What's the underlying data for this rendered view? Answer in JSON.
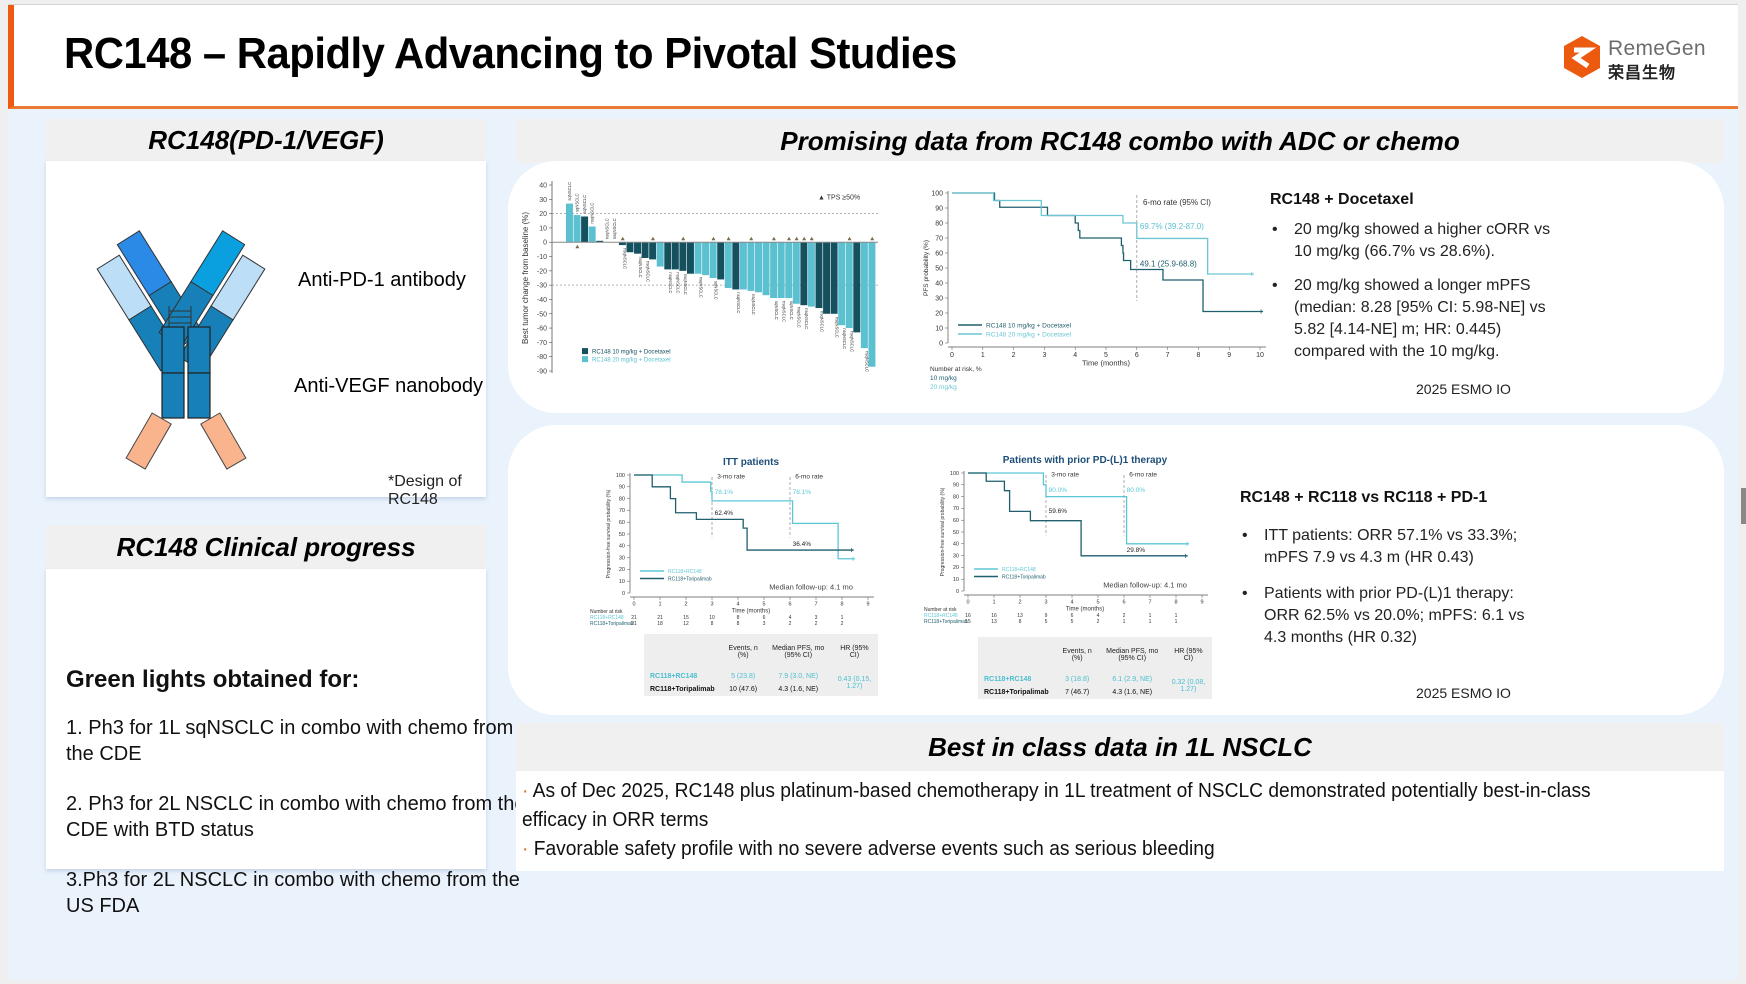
{
  "header": {
    "title": "RC148 – Rapidly Advancing to Pivotal Studies",
    "logo_word": "RemeGen",
    "logo_cn": "荣昌生物",
    "accent_color": "#ee5a12"
  },
  "molecule_panel": {
    "title": "RC148(PD-1/VEGF)",
    "label_pd1": "Anti-PD-1 antibody",
    "label_vegf": "Anti-VEGF nanobody",
    "footnote": "*Design of RC148"
  },
  "progress_panel": {
    "title": "RC148 Clinical progress",
    "heading": "Green lights obtained for:",
    "items": [
      "1. Ph3 for 1L sqNSCLC in combo with chemo from the CDE",
      "2. Ph3 for 2L NSCLC in combo with chemo from the CDE with BTD status",
      "3.Ph3 for 2L NSCLC in combo with chemo from the US FDA"
    ]
  },
  "combo_panel": {
    "title": "Promising data from RC148 combo with ADC or chemo",
    "docetaxel": {
      "heading": "RC148 + Docetaxel",
      "bullets": [
        "20 mg/kg showed a higher cORR vs 10 mg/kg (66.7% vs 28.6%).",
        "20 mg/kg showed a longer mPFS (median: 8.28 [95% CI: 5.98-NE] vs 5.82 [4.14-NE] m; HR: 0.445) compared with the 10 mg/kg."
      ],
      "source": "2025 ESMO IO"
    },
    "rc118": {
      "heading": "RC148 + RC118 vs RC118 + PD-1",
      "bullets": [
        "ITT patients: ORR  57.1% vs 33.3%; mPFS 7.9 vs 4.3 m (HR 0.43)",
        "Patients with prior PD-(L)1 therapy: ORR 62.5% vs 20.0%; mPFS: 6.1 vs 4.3 months (HR 0.32)"
      ],
      "source": "2025 ESMO IO"
    }
  },
  "best_panel": {
    "title": "Best in class data in 1L NSCLC",
    "bullets": [
      "As of Dec 2025, RC148 plus platinum-based chemotherapy in 1L treatment of NSCLC demonstrated potentially best-in-class efficacy in ORR terms",
      "Favorable safety profile with no severe adverse events such as serious bleeding"
    ]
  },
  "chart_data": [
    {
      "id": "waterfall",
      "type": "bar",
      "title": "",
      "ylabel": "Best tumor change from baseline (%)",
      "ylim": [
        -90,
        40
      ],
      "yticks": [
        40,
        30,
        20,
        10,
        0,
        -10,
        -20,
        -30,
        -40,
        -50,
        -60,
        -70,
        -80,
        -90
      ],
      "reference_lines": [
        20,
        -30
      ],
      "annotation": "▲ TPS ≥50%",
      "colors": {
        "10mg": "#15505e",
        "20mg": "#5bc0d0"
      },
      "legend": [
        "RC148 10 mg/kg + Docetaxel",
        "RC148 20 mg/kg + Docetaxel"
      ],
      "bars": [
        {
          "v": 27,
          "g": "20mg",
          "tps": false,
          "lbl": "sqNSCLC"
        },
        {
          "v": 19,
          "g": "20mg",
          "tps": true,
          "lbl": "sqNSCLC"
        },
        {
          "v": 18,
          "g": "10mg",
          "tps": false,
          "lbl": "sqNSCLC"
        },
        {
          "v": 11,
          "g": "20mg",
          "tps": false,
          "lbl": "nsqNSCLC"
        },
        {
          "v": 1,
          "g": "10mg",
          "tps": false,
          "lbl": ""
        },
        {
          "v": 0,
          "g": "20mg",
          "tps": false,
          "lbl": "nsqNSCLC"
        },
        {
          "v": 0,
          "g": "20mg",
          "tps": false,
          "lbl": "nsqNSCLC"
        },
        {
          "v": -2,
          "g": "10mg",
          "tps": true,
          "lbl": "nsqNSCLC"
        },
        {
          "v": -7,
          "g": "10mg",
          "tps": false,
          "lbl": ""
        },
        {
          "v": -8,
          "g": "10mg",
          "tps": false,
          "lbl": "nsqNSCLC"
        },
        {
          "v": -11,
          "g": "10mg",
          "tps": false,
          "lbl": "nsqNSCLC"
        },
        {
          "v": -12,
          "g": "10mg",
          "tps": true,
          "lbl": ""
        },
        {
          "v": -17,
          "g": "20mg",
          "tps": false,
          "lbl": ""
        },
        {
          "v": -19,
          "g": "10mg",
          "tps": false,
          "lbl": "nsqNSCLC"
        },
        {
          "v": -19,
          "g": "10mg",
          "tps": false,
          "lbl": "nsqNSCLC"
        },
        {
          "v": -20,
          "g": "10mg",
          "tps": true,
          "lbl": "nsqNSCLC"
        },
        {
          "v": -22,
          "g": "10mg",
          "tps": false,
          "lbl": ""
        },
        {
          "v": -22,
          "g": "20mg",
          "tps": false,
          "lbl": "nsqNSCLC"
        },
        {
          "v": -23,
          "g": "20mg",
          "tps": false,
          "lbl": ""
        },
        {
          "v": -25,
          "g": "20mg",
          "tps": true,
          "lbl": "sqNSCLC"
        },
        {
          "v": -26,
          "g": "10mg",
          "tps": false,
          "lbl": ""
        },
        {
          "v": -32,
          "g": "20mg",
          "tps": true,
          "lbl": ""
        },
        {
          "v": -33,
          "g": "10mg",
          "tps": false,
          "lbl": "nsqNSCLC"
        },
        {
          "v": -33,
          "g": "20mg",
          "tps": false,
          "lbl": ""
        },
        {
          "v": -34,
          "g": "20mg",
          "tps": true,
          "lbl": "nsqNSCLC"
        },
        {
          "v": -35,
          "g": "20mg",
          "tps": false,
          "lbl": ""
        },
        {
          "v": -37,
          "g": "20mg",
          "tps": false,
          "lbl": ""
        },
        {
          "v": -39,
          "g": "20mg",
          "tps": true,
          "lbl": "sqNSCLC"
        },
        {
          "v": -39,
          "g": "20mg",
          "tps": false,
          "lbl": "nsqNSCLC"
        },
        {
          "v": -39,
          "g": "20mg",
          "tps": true,
          "lbl": "sqNSCLC"
        },
        {
          "v": -43,
          "g": "20mg",
          "tps": true,
          "lbl": "nsqNSCLC"
        },
        {
          "v": -44,
          "g": "10mg",
          "tps": true,
          "lbl": "nsqNSCLC"
        },
        {
          "v": -45,
          "g": "20mg",
          "tps": true,
          "lbl": ""
        },
        {
          "v": -46,
          "g": "10mg",
          "tps": false,
          "lbl": "nsqNSCLC"
        },
        {
          "v": -50,
          "g": "10mg",
          "tps": false,
          "lbl": ""
        },
        {
          "v": -50,
          "g": "10mg",
          "tps": false,
          "lbl": "nsqNSCLC"
        },
        {
          "v": -58,
          "g": "20mg",
          "tps": false,
          "lbl": "nsqNSCLC"
        },
        {
          "v": -60,
          "g": "20mg",
          "tps": true,
          "lbl": "nsqNSCLC"
        },
        {
          "v": -63,
          "g": "10mg",
          "tps": false,
          "lbl": ""
        },
        {
          "v": -74,
          "g": "20mg",
          "tps": false,
          "lbl": "nsqNSCLC"
        },
        {
          "v": -87,
          "g": "20mg",
          "tps": true,
          "lbl": ""
        }
      ]
    },
    {
      "id": "km_docetaxel",
      "type": "line",
      "ylabel": "PFS probability (%)",
      "xlabel": "Time (months)",
      "xlim": [
        0,
        10
      ],
      "ylim": [
        0,
        100
      ],
      "xticks": [
        0,
        1,
        2,
        3,
        4,
        5,
        6,
        7,
        8,
        9,
        10
      ],
      "yticks": [
        0,
        10,
        20,
        30,
        40,
        50,
        60,
        70,
        80,
        90,
        100
      ],
      "vline_x": 6,
      "rate_header": "6-mo rate (95% CI)",
      "annotations": [
        {
          "text": "69.7% (39.2-87.0)",
          "series": "20mg"
        },
        {
          "text": "49.1 (25.9-68.8)",
          "series": "10mg"
        }
      ],
      "risk_header": "Number at risk, %",
      "risk_labels": [
        "10 mg/kg",
        "20 mg/kg"
      ],
      "series": [
        {
          "name": "RC148 10 mg/kg + Docetaxel",
          "color": "#1f5f6e",
          "steps": [
            [
              0,
              100
            ],
            [
              1.35,
              100
            ],
            [
              1.38,
              95
            ],
            [
              1.55,
              90.5
            ],
            [
              3.1,
              85
            ],
            [
              4.0,
              80
            ],
            [
              4.1,
              75
            ],
            [
              4.15,
              70
            ],
            [
              5.5,
              65
            ],
            [
              5.55,
              60
            ],
            [
              5.57,
              55
            ],
            [
              5.8,
              49
            ],
            [
              6.85,
              42
            ],
            [
              8.15,
              21
            ],
            [
              10.1,
              21
            ]
          ]
        },
        {
          "name": "RC148 20 mg/kg + Docetaxel",
          "color": "#6cc6d4",
          "steps": [
            [
              0,
              100
            ],
            [
              1.35,
              95
            ],
            [
              2.9,
              85
            ],
            [
              5.55,
              80
            ],
            [
              6.0,
              69.7
            ],
            [
              8.3,
              46
            ],
            [
              9.8,
              46
            ]
          ]
        }
      ]
    },
    {
      "id": "km_itt",
      "type": "line",
      "title": "ITT patients",
      "ylabel": "Progression-free survival probability (%)",
      "xlabel": "Time (months)",
      "xlim": [
        0,
        9
      ],
      "ylim": [
        0,
        100
      ],
      "xticks": [
        0,
        1,
        2,
        3,
        4,
        5,
        6,
        7,
        8,
        9
      ],
      "yticks": [
        0,
        10,
        20,
        30,
        40,
        50,
        60,
        70,
        80,
        90,
        100
      ],
      "vlines": [
        3,
        6
      ],
      "rate_labels": [
        "3-mo rate",
        "6-mo rate"
      ],
      "annotations": [
        {
          "text": "78.1%",
          "series": "RC118+RC148",
          "at": 3
        },
        {
          "text": "78.1%",
          "series": "RC118+RC148",
          "at": 6
        },
        {
          "text": "62.4%",
          "series": "RC118+Toripalimab",
          "at": 3
        },
        {
          "text": "36.4%",
          "series": "RC118+Toripalimab",
          "at": 6
        }
      ],
      "follow_up": "Median follow-up: 4.1 mo",
      "series": [
        {
          "name": "RC118+RC148",
          "color": "#5bc7d6",
          "steps": [
            [
              0,
              100
            ],
            [
              1.85,
              94
            ],
            [
              2.95,
              86
            ],
            [
              3.0,
              78.1
            ],
            [
              6.1,
              59
            ],
            [
              7.85,
              29
            ],
            [
              8.5,
              29
            ]
          ]
        },
        {
          "name": "RC118+Toripalimab",
          "color": "#1f5f6e",
          "steps": [
            [
              0,
              100
            ],
            [
              0.7,
              90
            ],
            [
              1.4,
              80
            ],
            [
              1.6,
              68
            ],
            [
              2.4,
              62.4
            ],
            [
              4.2,
              55
            ],
            [
              4.35,
              36.4
            ],
            [
              8.45,
              36.4
            ]
          ]
        }
      ],
      "risk_table": {
        "header": "Number at risk",
        "rows": [
          {
            "name": "RC118+RC148",
            "values": [
              21,
              21,
              15,
              10,
              8,
              6,
              4,
              3,
              1
            ]
          },
          {
            "name": "RC118+Toripalimab",
            "values": [
              21,
              18,
              12,
              8,
              8,
              3,
              2,
              2,
              2
            ]
          }
        ]
      },
      "summary": {
        "columns": [
          "",
          "Events, n (%)",
          "Median PFS, mo (95% CI)",
          "HR (95% CI)"
        ],
        "rows": [
          [
            "RC118+RC148",
            "5 (23.8)",
            "7.9 (3.0, NE)"
          ],
          [
            "RC118+Toripalimab",
            "10 (47.6)",
            "4.3 (1.6, NE)"
          ]
        ],
        "hr": "0.43 (0.15, 1.27)"
      }
    },
    {
      "id": "km_prior",
      "type": "line",
      "title": "Patients with prior PD-(L)1 therapy",
      "ylabel": "Progression-free survival probability (%)",
      "xlabel": "Time (months)",
      "xlim": [
        0,
        9
      ],
      "ylim": [
        0,
        100
      ],
      "xticks": [
        0,
        1,
        2,
        3,
        4,
        5,
        6,
        7,
        8,
        9
      ],
      "yticks": [
        0,
        10,
        20,
        30,
        40,
        50,
        60,
        70,
        80,
        90,
        100
      ],
      "vlines": [
        3,
        6
      ],
      "rate_labels": [
        "3-mo rate",
        "6-mo rate"
      ],
      "annotations": [
        {
          "text": "80.0%",
          "series": "RC118+RC148",
          "at": 3
        },
        {
          "text": "80.0%",
          "series": "RC118+RC148",
          "at": 6
        },
        {
          "text": "59.6%",
          "series": "RC118+Toripalimab",
          "at": 3
        },
        {
          "text": "29.8%",
          "series": "RC118+Toripalimab",
          "at": 6
        }
      ],
      "follow_up": "Median follow-up: 4.1 mo",
      "series": [
        {
          "name": "RC118+RC148",
          "color": "#5bc7d6",
          "steps": [
            [
              0,
              100
            ],
            [
              2.9,
              90
            ],
            [
              3.0,
              80
            ],
            [
              6.1,
              40
            ],
            [
              8.5,
              40
            ]
          ]
        },
        {
          "name": "RC118+Toripalimab",
          "color": "#1f5f6e",
          "steps": [
            [
              0,
              100
            ],
            [
              0.7,
              93
            ],
            [
              1.4,
              85
            ],
            [
              1.6,
              67.5
            ],
            [
              2.4,
              59.6
            ],
            [
              4.35,
              29.8
            ],
            [
              8.45,
              29.8
            ]
          ]
        }
      ],
      "risk_table": {
        "header": "Number at risk",
        "rows": [
          {
            "name": "RC118+RC148",
            "values": [
              16,
              16,
              13,
              9,
              6,
              4,
              2,
              1,
              1
            ]
          },
          {
            "name": "RC118+Toripalimab",
            "values": [
              15,
              13,
              8,
              5,
              5,
              2,
              1,
              1,
              1
            ]
          }
        ]
      },
      "summary": {
        "columns": [
          "",
          "Events, n (%)",
          "Median PFS, mo (95% CI)",
          "HR (95% CI)"
        ],
        "rows": [
          [
            "RC118+RC148",
            "3 (18.8)",
            "6.1 (2.9, NE)"
          ],
          [
            "RC118+Toripalimab",
            "7 (46.7)",
            "4.3 (1.6, NE)"
          ]
        ],
        "hr": "0.32 (0.08, 1.27)"
      }
    }
  ]
}
